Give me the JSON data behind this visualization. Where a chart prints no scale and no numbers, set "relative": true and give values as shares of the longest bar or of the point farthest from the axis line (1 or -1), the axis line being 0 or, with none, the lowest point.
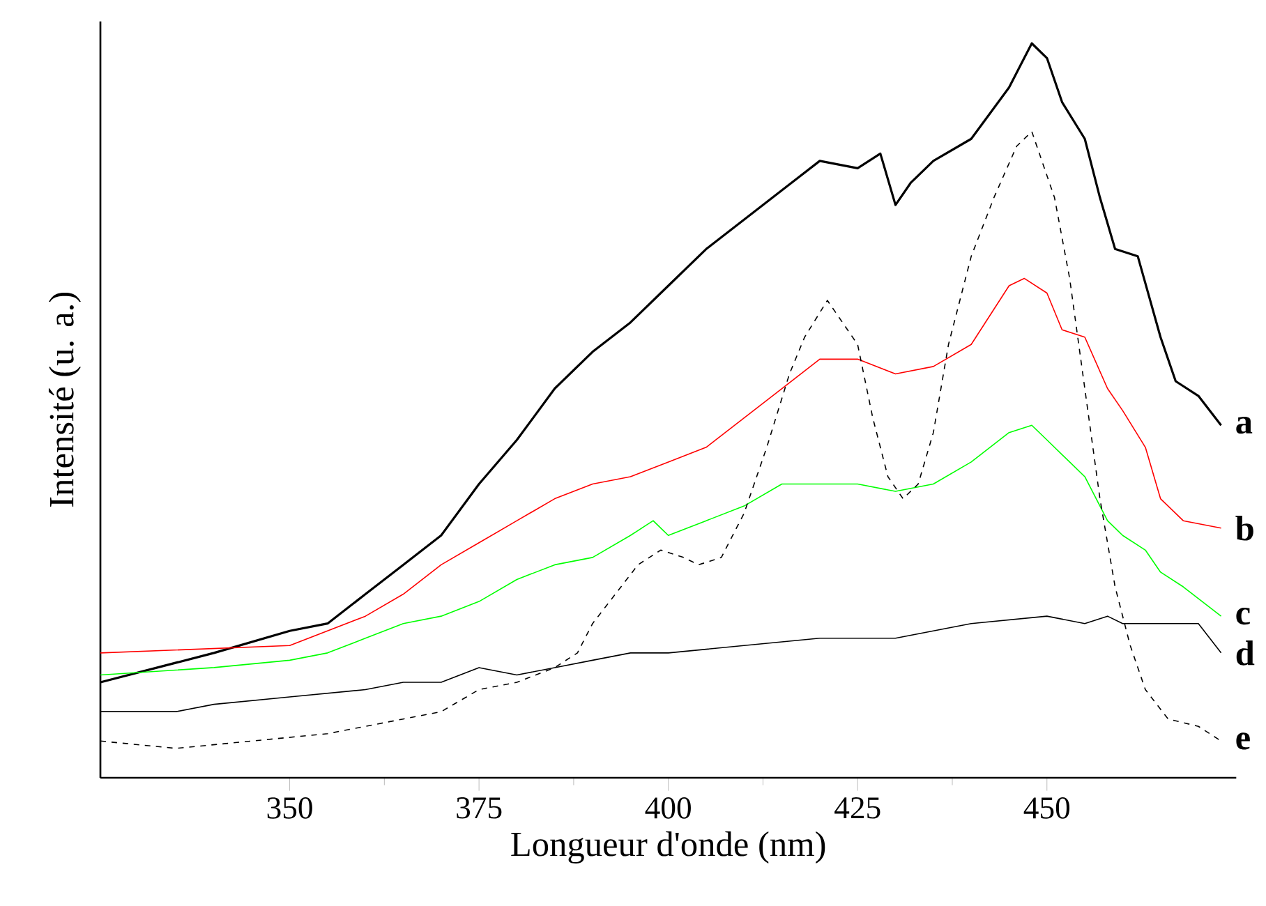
{
  "chart_data": {
    "type": "line",
    "relative": true,
    "xlabel": "Longueur d'onde (nm)",
    "ylabel": "Intensité (u. a.)",
    "xlim": [
      325,
      475
    ],
    "xticks": [
      350,
      375,
      400,
      425,
      450
    ],
    "grid": false,
    "legend": false,
    "marker": "none",
    "series": [
      {
        "name": "a",
        "color": "#000000",
        "line_style": "solid",
        "x": [
          325,
          340,
          350,
          355,
          360,
          365,
          370,
          375,
          380,
          385,
          390,
          395,
          400,
          405,
          410,
          415,
          420,
          425,
          428,
          430,
          432,
          435,
          440,
          445,
          447,
          448,
          450,
          452,
          455,
          457,
          459,
          462,
          465,
          467,
          470,
          473
        ],
        "values": [
          0.13,
          0.17,
          0.2,
          0.21,
          0.25,
          0.29,
          0.33,
          0.4,
          0.46,
          0.53,
          0.58,
          0.62,
          0.67,
          0.72,
          0.76,
          0.8,
          0.84,
          0.83,
          0.85,
          0.78,
          0.81,
          0.84,
          0.87,
          0.94,
          0.98,
          1.0,
          0.98,
          0.92,
          0.87,
          0.79,
          0.72,
          0.71,
          0.6,
          0.54,
          0.52,
          0.48
        ]
      },
      {
        "name": "b",
        "color": "#ff0000",
        "line_style": "solid",
        "x": [
          325,
          350,
          355,
          360,
          365,
          370,
          375,
          380,
          385,
          390,
          395,
          400,
          405,
          410,
          415,
          420,
          425,
          430,
          435,
          440,
          445,
          447,
          450,
          452,
          455,
          458,
          460,
          463,
          465,
          468,
          473
        ],
        "values": [
          0.17,
          0.18,
          0.2,
          0.22,
          0.25,
          0.29,
          0.32,
          0.35,
          0.38,
          0.4,
          0.41,
          0.43,
          0.45,
          0.49,
          0.53,
          0.57,
          0.57,
          0.55,
          0.56,
          0.59,
          0.67,
          0.68,
          0.66,
          0.61,
          0.6,
          0.53,
          0.5,
          0.45,
          0.38,
          0.35,
          0.34
        ]
      },
      {
        "name": "c",
        "color": "#00ff00",
        "line_style": "solid",
        "x": [
          325,
          340,
          350,
          355,
          360,
          365,
          370,
          375,
          380,
          385,
          390,
          395,
          398,
          400,
          405,
          410,
          415,
          420,
          425,
          430,
          435,
          440,
          445,
          448,
          450,
          453,
          455,
          458,
          460,
          463,
          465,
          468,
          473
        ],
        "values": [
          0.14,
          0.15,
          0.16,
          0.17,
          0.19,
          0.21,
          0.22,
          0.24,
          0.27,
          0.29,
          0.3,
          0.33,
          0.35,
          0.33,
          0.35,
          0.37,
          0.4,
          0.4,
          0.4,
          0.39,
          0.4,
          0.43,
          0.47,
          0.48,
          0.46,
          0.43,
          0.41,
          0.35,
          0.33,
          0.31,
          0.28,
          0.26,
          0.22
        ]
      },
      {
        "name": "d",
        "color": "#000000",
        "line_style": "solid",
        "x": [
          325,
          335,
          340,
          350,
          360,
          365,
          370,
          375,
          380,
          385,
          390,
          395,
          400,
          410,
          420,
          430,
          440,
          450,
          455,
          458,
          460,
          465,
          470,
          473
        ],
        "values": [
          0.09,
          0.09,
          0.1,
          0.11,
          0.12,
          0.13,
          0.13,
          0.15,
          0.14,
          0.15,
          0.16,
          0.17,
          0.17,
          0.18,
          0.19,
          0.19,
          0.21,
          0.22,
          0.21,
          0.22,
          0.21,
          0.21,
          0.21,
          0.17
        ]
      },
      {
        "name": "e",
        "color": "#000000",
        "line_style": "dashed",
        "x": [
          325,
          335,
          345,
          355,
          365,
          370,
          375,
          380,
          385,
          388,
          390,
          393,
          396,
          399,
          402,
          404,
          407,
          410,
          413,
          416,
          418,
          421,
          423,
          425,
          427,
          429,
          431,
          433,
          435,
          437,
          440,
          443,
          446,
          448,
          449,
          451,
          453,
          455,
          457,
          459,
          461,
          463,
          466,
          470,
          473
        ],
        "values": [
          0.05,
          0.04,
          0.05,
          0.06,
          0.08,
          0.09,
          0.12,
          0.13,
          0.15,
          0.17,
          0.21,
          0.25,
          0.29,
          0.31,
          0.3,
          0.29,
          0.3,
          0.36,
          0.45,
          0.55,
          0.6,
          0.65,
          0.62,
          0.59,
          0.49,
          0.41,
          0.38,
          0.4,
          0.47,
          0.59,
          0.71,
          0.79,
          0.86,
          0.88,
          0.85,
          0.79,
          0.68,
          0.53,
          0.38,
          0.26,
          0.18,
          0.12,
          0.08,
          0.07,
          0.05
        ]
      }
    ]
  }
}
